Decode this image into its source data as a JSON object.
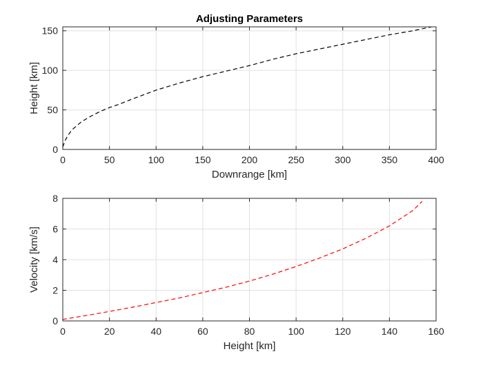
{
  "colors": {
    "background": "#ffffff",
    "axes_box": "#262626",
    "grid": "#e0e0e0",
    "text": "#262626"
  },
  "chart_data": [
    {
      "type": "line",
      "title": "Adjusting Parameters",
      "xlabel": "Downrange [km]",
      "ylabel": "Height [km]",
      "xlim": [
        0,
        400
      ],
      "ylim": [
        0,
        155
      ],
      "xticks": [
        0,
        50,
        100,
        150,
        200,
        250,
        300,
        350,
        400
      ],
      "yticks": [
        0,
        50,
        100,
        150
      ],
      "grid": true,
      "series": [
        {
          "color": "#000000",
          "line_style": "dashed",
          "x": [
            0,
            2,
            5,
            10,
            20,
            30,
            40,
            50,
            60,
            75,
            100,
            125,
            150,
            175,
            200,
            225,
            250,
            275,
            300,
            325,
            350,
            375,
            395
          ],
          "y": [
            3,
            10,
            17,
            25,
            35,
            42,
            48,
            53,
            57,
            64,
            75,
            84,
            92,
            99,
            106,
            114,
            121,
            127,
            133,
            139,
            145,
            150,
            155
          ]
        }
      ]
    },
    {
      "type": "line",
      "title": "",
      "xlabel": "Height [km]",
      "ylabel": "Velocity [km/s]",
      "xlim": [
        0,
        160
      ],
      "ylim": [
        0,
        8
      ],
      "xticks": [
        0,
        20,
        40,
        60,
        80,
        100,
        120,
        140,
        160
      ],
      "yticks": [
        0,
        2,
        4,
        6,
        8
      ],
      "grid": true,
      "series": [
        {
          "color": "#ff0000",
          "line_style": "dashed",
          "x": [
            0,
            10,
            20,
            30,
            40,
            50,
            60,
            70,
            80,
            90,
            100,
            110,
            120,
            130,
            140,
            150,
            154
          ],
          "y": [
            0.1,
            0.35,
            0.62,
            0.9,
            1.2,
            1.5,
            1.85,
            2.2,
            2.6,
            3.05,
            3.55,
            4.1,
            4.7,
            5.4,
            6.2,
            7.2,
            7.8
          ]
        }
      ]
    }
  ]
}
